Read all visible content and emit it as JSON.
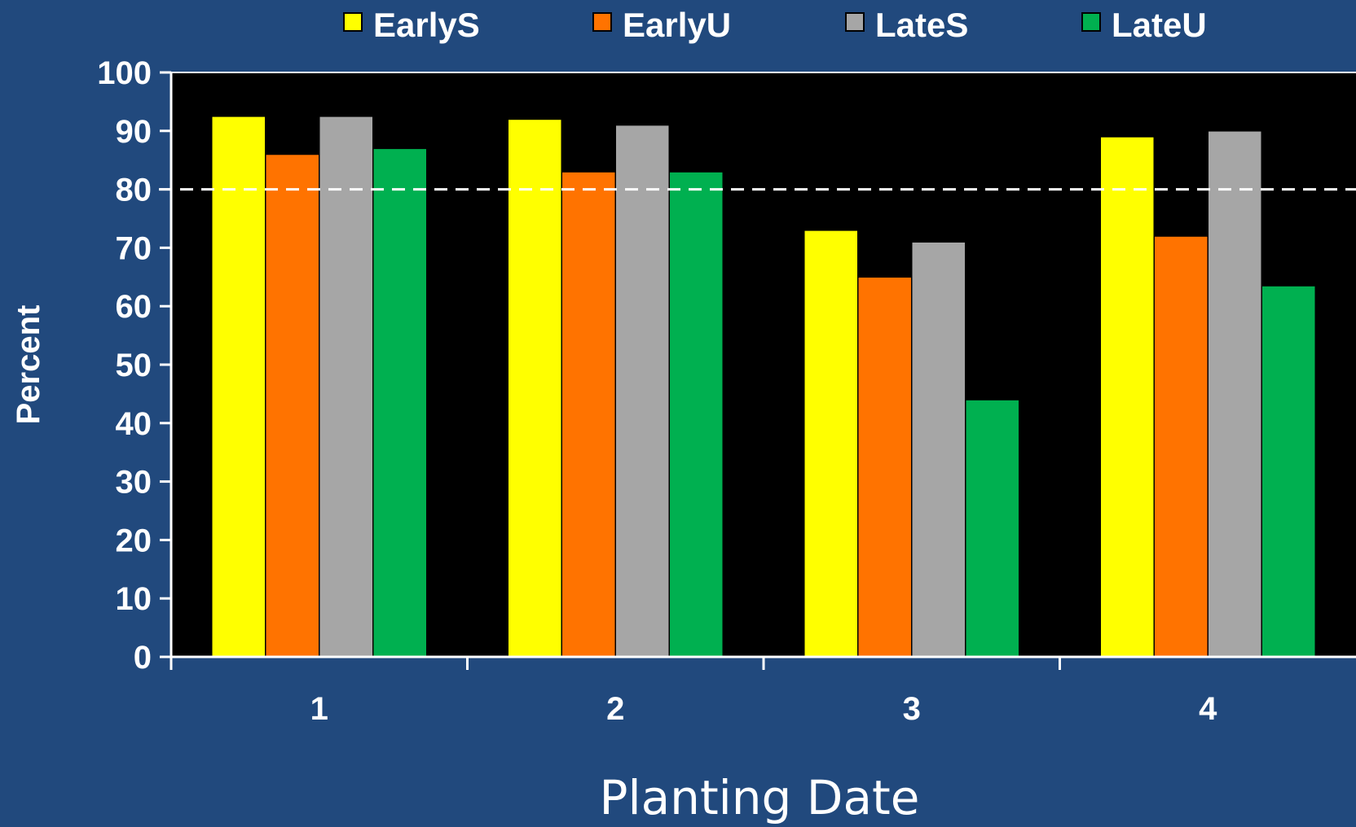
{
  "chart_data": {
    "type": "bar",
    "title": "",
    "xlabel": "Planting Date",
    "ylabel": "Percent",
    "categories": [
      "1",
      "2",
      "3",
      "4"
    ],
    "series": [
      {
        "name": "EarlyS",
        "color": "#ffff00",
        "values": [
          92.5,
          92,
          73,
          89
        ]
      },
      {
        "name": "EarlyU",
        "color": "#ff7300",
        "values": [
          86,
          83,
          65,
          72
        ]
      },
      {
        "name": "LateS",
        "color": "#a6a6a6",
        "values": [
          92.5,
          91,
          71,
          90
        ]
      },
      {
        "name": "LateU",
        "color": "#00b050",
        "values": [
          87,
          83,
          44,
          63.5
        ]
      }
    ],
    "ylim": [
      0,
      100
    ],
    "yticks": [
      "0",
      "10",
      "20",
      "30",
      "40",
      "50",
      "60",
      "70",
      "80",
      "90",
      "100"
    ],
    "reference_line": 80,
    "grid": false,
    "legend_position": "top",
    "plot_background": "#000000",
    "page_background": "#21497d"
  }
}
